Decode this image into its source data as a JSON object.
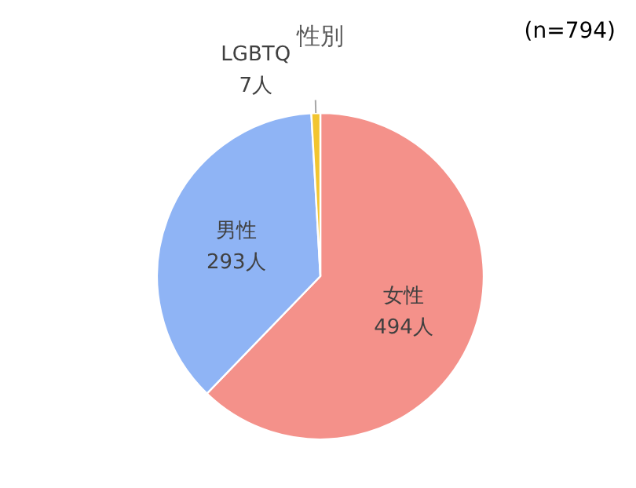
{
  "chart_data": {
    "type": "pie",
    "title": "性別",
    "annotations": [
      "(n=794)"
    ],
    "categories": [
      "女性",
      "男性",
      "LGBTQ"
    ],
    "values": [
      494,
      293,
      7
    ],
    "value_labels": [
      "494人",
      "293人",
      "7人"
    ],
    "colors": [
      "#f4918a",
      "#8fb4f5",
      "#f2c530"
    ]
  }
}
